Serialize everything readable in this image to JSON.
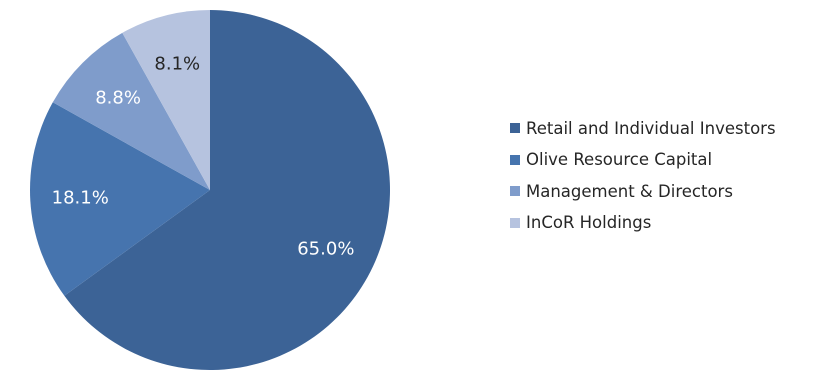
{
  "chart_data": {
    "type": "pie",
    "title": "",
    "start_angle_deg": 0,
    "direction": "clockwise",
    "legend_position": "right",
    "slices": [
      {
        "label": "Retail and Individual Investors",
        "value": 65.0,
        "value_label": "65.0%",
        "color": "#3c6396"
      },
      {
        "label": "Olive Resource Capital",
        "value": 18.1,
        "value_label": "18.1%",
        "color": "#4674ae"
      },
      {
        "label": "Management & Directors",
        "value": 8.8,
        "value_label": "8.8%",
        "color": "#7f9ccb"
      },
      {
        "label": "InCoR Holdings",
        "value": 8.1,
        "value_label": "8.1%",
        "color": "#b6c3df",
        "label_color": "#262626"
      }
    ]
  }
}
